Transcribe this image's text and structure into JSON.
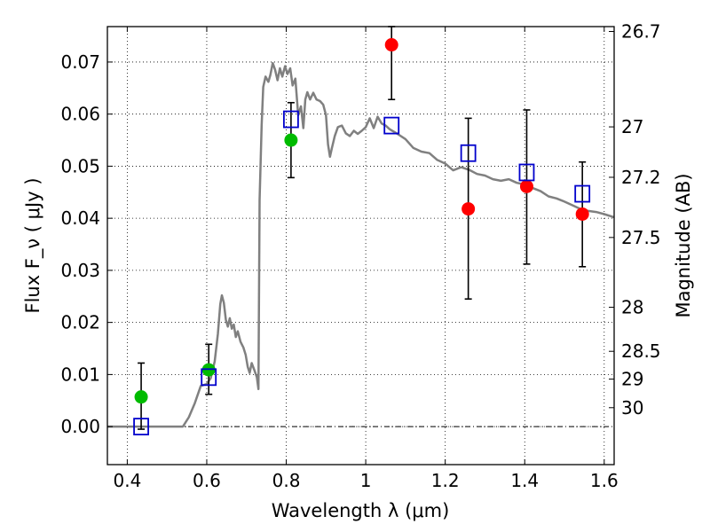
{
  "chart_data": {
    "type": "scatter",
    "xlabel": "Wavelength  λ (μm)",
    "ylabel": "Flux  F_ν  ( μJy )",
    "ylabel_right": "Magnitude (AB)",
    "xlim": [
      0.35,
      1.625
    ],
    "ylim": [
      -0.0073,
      0.0768
    ],
    "grid": true,
    "x_ticks": [
      {
        "value": 0.4,
        "label": "0.4"
      },
      {
        "value": 0.6,
        "label": "0.6"
      },
      {
        "value": 0.8,
        "label": "0.8"
      },
      {
        "value": 1.0,
        "label": "1"
      },
      {
        "value": 1.2,
        "label": "1.2"
      },
      {
        "value": 1.4,
        "label": "1.4"
      },
      {
        "value": 1.6,
        "label": "1.6"
      }
    ],
    "y_ticks": [
      {
        "value": 0.0,
        "label": "0.00"
      },
      {
        "value": 0.01,
        "label": "0.01"
      },
      {
        "value": 0.02,
        "label": "0.02"
      },
      {
        "value": 0.03,
        "label": "0.03"
      },
      {
        "value": 0.04,
        "label": "0.04"
      },
      {
        "value": 0.05,
        "label": "0.05"
      },
      {
        "value": 0.06,
        "label": "0.06"
      },
      {
        "value": 0.07,
        "label": "0.07"
      }
    ],
    "right_ticks": [
      {
        "value": 26.7,
        "label": "26.7"
      },
      {
        "value": 27,
        "label": "27"
      },
      {
        "value": 27.2,
        "label": "27.2"
      },
      {
        "value": 27.5,
        "label": "27.5"
      },
      {
        "value": 28,
        "label": "28"
      },
      {
        "value": 28.5,
        "label": "28.5"
      },
      {
        "value": 29,
        "label": "29"
      },
      {
        "value": 30,
        "label": "30"
      }
    ],
    "series": [
      {
        "kind": "line",
        "color": "#808080",
        "points": [
          [
            0.35,
            0.0
          ],
          [
            0.54,
            0.0
          ],
          [
            0.555,
            0.0018
          ],
          [
            0.57,
            0.0045
          ],
          [
            0.585,
            0.0078
          ],
          [
            0.6,
            0.0082
          ],
          [
            0.61,
            0.0093
          ],
          [
            0.62,
            0.0125
          ],
          [
            0.628,
            0.0178
          ],
          [
            0.634,
            0.0235
          ],
          [
            0.638,
            0.0252
          ],
          [
            0.643,
            0.0238
          ],
          [
            0.648,
            0.0205
          ],
          [
            0.653,
            0.0192
          ],
          [
            0.658,
            0.0208
          ],
          [
            0.663,
            0.0188
          ],
          [
            0.668,
            0.0196
          ],
          [
            0.673,
            0.0172
          ],
          [
            0.678,
            0.0183
          ],
          [
            0.685,
            0.0163
          ],
          [
            0.692,
            0.0152
          ],
          [
            0.698,
            0.0138
          ],
          [
            0.703,
            0.0115
          ],
          [
            0.708,
            0.0103
          ],
          [
            0.713,
            0.0122
          ],
          [
            0.72,
            0.0108
          ],
          [
            0.726,
            0.0095
          ],
          [
            0.73,
            0.0072
          ],
          [
            0.733,
            0.0435
          ],
          [
            0.738,
            0.0578
          ],
          [
            0.742,
            0.0652
          ],
          [
            0.748,
            0.0672
          ],
          [
            0.755,
            0.0662
          ],
          [
            0.76,
            0.0675
          ],
          [
            0.766,
            0.0698
          ],
          [
            0.772,
            0.0685
          ],
          [
            0.778,
            0.0665
          ],
          [
            0.784,
            0.0688
          ],
          [
            0.79,
            0.0672
          ],
          [
            0.797,
            0.0692
          ],
          [
            0.803,
            0.0677
          ],
          [
            0.81,
            0.0688
          ],
          [
            0.816,
            0.0655
          ],
          [
            0.823,
            0.0668
          ],
          [
            0.83,
            0.0598
          ],
          [
            0.837,
            0.0615
          ],
          [
            0.843,
            0.0573
          ],
          [
            0.848,
            0.0628
          ],
          [
            0.853,
            0.0642
          ],
          [
            0.86,
            0.0628
          ],
          [
            0.868,
            0.0641
          ],
          [
            0.876,
            0.0628
          ],
          [
            0.885,
            0.0625
          ],
          [
            0.893,
            0.0618
          ],
          [
            0.9,
            0.0598
          ],
          [
            0.905,
            0.0542
          ],
          [
            0.91,
            0.0518
          ],
          [
            0.915,
            0.0535
          ],
          [
            0.922,
            0.0558
          ],
          [
            0.93,
            0.0575
          ],
          [
            0.94,
            0.0578
          ],
          [
            0.95,
            0.0563
          ],
          [
            0.96,
            0.0558
          ],
          [
            0.97,
            0.0568
          ],
          [
            0.98,
            0.0562
          ],
          [
            0.99,
            0.0568
          ],
          [
            1.0,
            0.0575
          ],
          [
            1.01,
            0.0592
          ],
          [
            1.02,
            0.0573
          ],
          [
            1.03,
            0.0595
          ],
          [
            1.04,
            0.0582
          ],
          [
            1.05,
            0.0578
          ],
          [
            1.06,
            0.0571
          ],
          [
            1.08,
            0.0562
          ],
          [
            1.1,
            0.0552
          ],
          [
            1.12,
            0.0535
          ],
          [
            1.14,
            0.0528
          ],
          [
            1.16,
            0.0525
          ],
          [
            1.18,
            0.0512
          ],
          [
            1.2,
            0.0505
          ],
          [
            1.22,
            0.0492
          ],
          [
            1.24,
            0.0498
          ],
          [
            1.26,
            0.0493
          ],
          [
            1.28,
            0.0485
          ],
          [
            1.3,
            0.0482
          ],
          [
            1.32,
            0.0475
          ],
          [
            1.34,
            0.0472
          ],
          [
            1.36,
            0.0475
          ],
          [
            1.38,
            0.0468
          ],
          [
            1.4,
            0.0465
          ],
          [
            1.42,
            0.0458
          ],
          [
            1.44,
            0.0452
          ],
          [
            1.46,
            0.0442
          ],
          [
            1.48,
            0.0438
          ],
          [
            1.5,
            0.0432
          ],
          [
            1.52,
            0.0425
          ],
          [
            1.54,
            0.0418
          ],
          [
            1.56,
            0.0414
          ],
          [
            1.58,
            0.0412
          ],
          [
            1.6,
            0.0408
          ],
          [
            1.625,
            0.0402
          ]
        ]
      },
      {
        "kind": "errorbars",
        "color": "#000000",
        "points": [
          {
            "x": 0.435,
            "low": -0.0005,
            "high": 0.0122
          },
          {
            "x": 0.605,
            "low": 0.0062,
            "high": 0.0158
          },
          {
            "x": 0.812,
            "low": 0.0478,
            "high": 0.0622
          },
          {
            "x": 1.065,
            "low": 0.0628,
            "high": 0.0768
          },
          {
            "x": 1.258,
            "low": 0.0245,
            "high": 0.0592
          },
          {
            "x": 1.405,
            "low": 0.0312,
            "high": 0.0608
          },
          {
            "x": 1.545,
            "low": 0.0307,
            "high": 0.0508
          }
        ]
      },
      {
        "kind": "markers",
        "marker": "circle",
        "color": "#00bb00",
        "points": [
          [
            0.435,
            0.0057
          ],
          [
            0.605,
            0.0109
          ],
          [
            0.812,
            0.055
          ]
        ]
      },
      {
        "kind": "markers",
        "marker": "circle",
        "color": "#ff0000",
        "points": [
          [
            1.065,
            0.0733
          ],
          [
            1.258,
            0.0418
          ],
          [
            1.405,
            0.0461
          ],
          [
            1.545,
            0.0408
          ]
        ]
      },
      {
        "kind": "markers",
        "marker": "square",
        "color": "#0000cc",
        "points": [
          [
            0.435,
            0.0
          ],
          [
            0.605,
            0.0095
          ],
          [
            0.812,
            0.059
          ],
          [
            1.065,
            0.0578
          ],
          [
            1.258,
            0.0525
          ],
          [
            1.405,
            0.0488
          ],
          [
            1.545,
            0.0447
          ]
        ]
      }
    ]
  }
}
